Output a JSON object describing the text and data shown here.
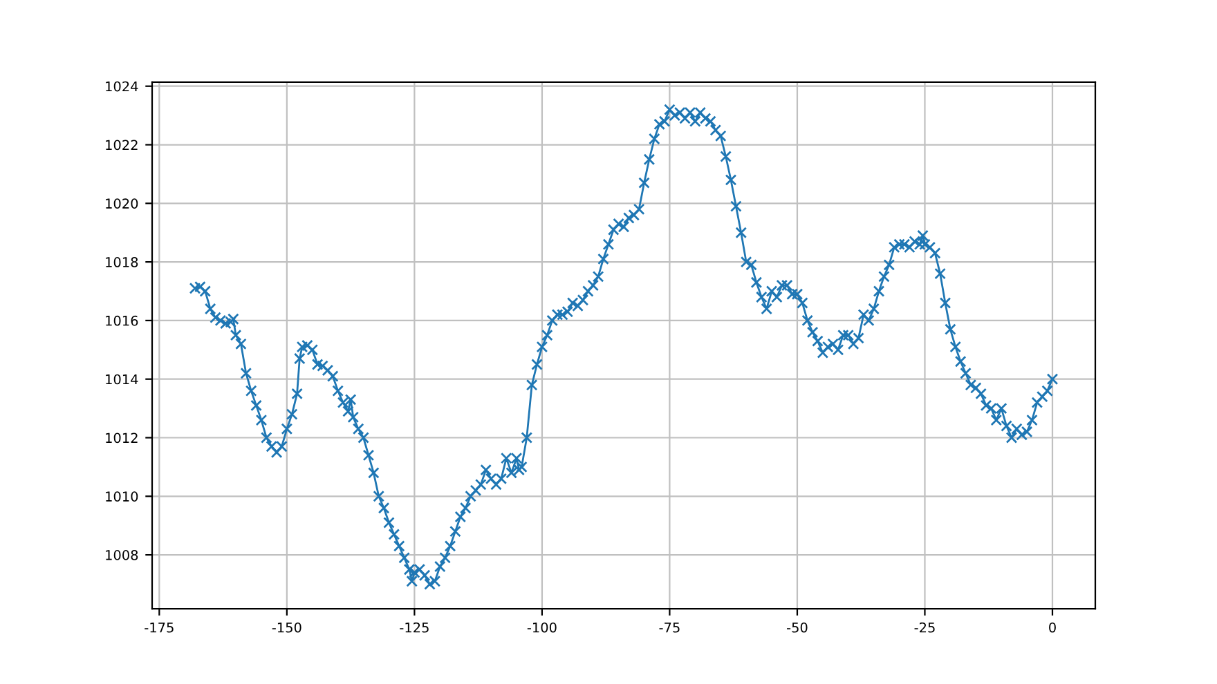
{
  "chart_data": {
    "type": "line",
    "color": "#1f77b4",
    "marker": "cross",
    "line_style": "solid",
    "grid": true,
    "x": [
      -168,
      -167,
      -166,
      -165,
      -164,
      -163,
      -162,
      -161,
      -160.5,
      -160,
      -159,
      -158,
      -157,
      -156,
      -155,
      -154,
      -153,
      -152,
      -151,
      -150,
      -149,
      -148,
      -147.5,
      -147,
      -146,
      -145,
      -144,
      -143,
      -142,
      -141,
      -140,
      -139,
      -138,
      -137.5,
      -137,
      -136,
      -135,
      -134,
      -133,
      -132,
      -131,
      -130,
      -129,
      -128,
      -127,
      -126,
      -125.5,
      -125,
      -124,
      -123,
      -122,
      -121,
      -120,
      -119,
      -118,
      -117,
      -116,
      -115,
      -114,
      -113,
      -112,
      -111,
      -110,
      -109,
      -108,
      -107,
      -106,
      -105,
      -104.5,
      -104,
      -103,
      -102,
      -101,
      -100,
      -99,
      -98,
      -97,
      -96,
      -95,
      -94,
      -93,
      -92,
      -91,
      -90,
      -89,
      -88,
      -87,
      -86,
      -85,
      -84,
      -83,
      -82,
      -81,
      -80,
      -79,
      -78,
      -77,
      -76,
      -75,
      -74,
      -73,
      -72,
      -71,
      -70,
      -69,
      -68,
      -67,
      -66,
      -65,
      -64,
      -63,
      -62,
      -61,
      -60,
      -59,
      -58,
      -57,
      -56,
      -55,
      -54,
      -53,
      -52,
      -51,
      -50,
      -49,
      -48,
      -47,
      -46,
      -45,
      -44,
      -43,
      -42,
      -41,
      -40,
      -39,
      -38,
      -37,
      -36,
      -35,
      -34,
      -33,
      -32,
      -31,
      -30,
      -29,
      -28,
      -27,
      -26,
      -25.4,
      -25,
      -24,
      -23,
      -22,
      -21,
      -20,
      -19,
      -18,
      -17,
      -16,
      -15,
      -14,
      -13,
      -12,
      -11,
      -10,
      -9,
      -8,
      -7,
      -6,
      -5,
      -4,
      -3,
      -2,
      -1,
      0
    ],
    "values": [
      1017.1,
      1017.15,
      1017.0,
      1016.4,
      1016.1,
      1016.0,
      1015.9,
      1015.95,
      1016.05,
      1015.5,
      1015.2,
      1014.2,
      1013.6,
      1013.1,
      1012.6,
      1012.0,
      1011.7,
      1011.5,
      1011.7,
      1012.3,
      1012.8,
      1013.5,
      1014.7,
      1015.1,
      1015.15,
      1015.0,
      1014.5,
      1014.45,
      1014.3,
      1014.1,
      1013.6,
      1013.2,
      1012.9,
      1013.3,
      1012.7,
      1012.3,
      1012.0,
      1011.4,
      1010.8,
      1010.0,
      1009.6,
      1009.1,
      1008.7,
      1008.3,
      1007.9,
      1007.5,
      1007.1,
      1007.4,
      1007.5,
      1007.3,
      1007.0,
      1007.1,
      1007.6,
      1007.9,
      1008.3,
      1008.8,
      1009.3,
      1009.6,
      1010.0,
      1010.2,
      1010.4,
      1010.9,
      1010.6,
      1010.4,
      1010.6,
      1011.3,
      1010.8,
      1011.3,
      1010.9,
      1011.0,
      1012.0,
      1013.8,
      1014.5,
      1015.1,
      1015.5,
      1016.0,
      1016.2,
      1016.2,
      1016.3,
      1016.6,
      1016.5,
      1016.7,
      1017.0,
      1017.2,
      1017.5,
      1018.1,
      1018.6,
      1019.1,
      1019.3,
      1019.2,
      1019.5,
      1019.6,
      1019.8,
      1020.7,
      1021.5,
      1022.2,
      1022.7,
      1022.8,
      1023.2,
      1023.0,
      1023.1,
      1022.9,
      1023.1,
      1022.8,
      1023.1,
      1022.9,
      1022.8,
      1022.5,
      1022.3,
      1021.6,
      1020.8,
      1019.9,
      1019.0,
      1018.0,
      1017.9,
      1017.3,
      1016.8,
      1016.4,
      1017.0,
      1016.8,
      1017.2,
      1017.2,
      1016.9,
      1016.9,
      1016.6,
      1016.0,
      1015.6,
      1015.3,
      1014.9,
      1015.1,
      1015.2,
      1015.0,
      1015.5,
      1015.5,
      1015.2,
      1015.4,
      1016.2,
      1016.0,
      1016.4,
      1017.0,
      1017.5,
      1017.9,
      1018.5,
      1018.6,
      1018.6,
      1018.5,
      1018.7,
      1018.6,
      1018.9,
      1018.6,
      1018.5,
      1018.3,
      1017.6,
      1016.6,
      1015.7,
      1015.1,
      1014.6,
      1014.2,
      1013.8,
      1013.7,
      1013.5,
      1013.1,
      1013.0,
      1012.6,
      1013.0,
      1012.4,
      1012.0,
      1012.3,
      1012.1,
      1012.2,
      1012.6,
      1013.2,
      1013.4,
      1013.6,
      1014.0
    ],
    "xlim": [
      -176.4,
      8.4
    ],
    "ylim": [
      1006.16,
      1024.14
    ],
    "xticks": [
      -175,
      -150,
      -125,
      -100,
      -75,
      -50,
      -25,
      0
    ],
    "yticks": [
      1008,
      1010,
      1012,
      1014,
      1016,
      1018,
      1020,
      1022,
      1024
    ]
  }
}
